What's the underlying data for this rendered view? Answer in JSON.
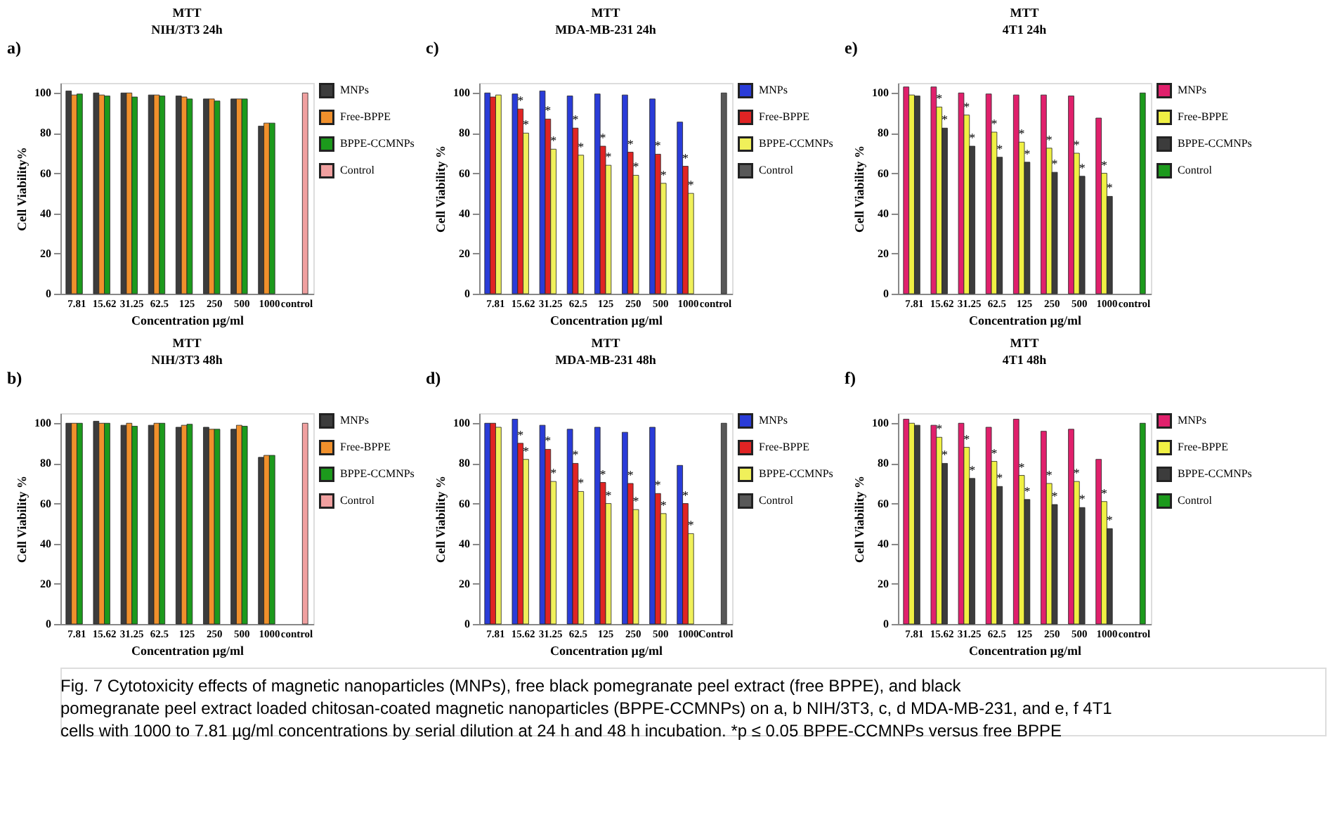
{
  "chart_data": [
    {
      "type": "bar",
      "title": "MTT",
      "subtitle": "NIH/3T3 24h",
      "xlabel": "Concentration µg/ml",
      "ylabel": "Cell Viability%",
      "annotations": [
        "a)",
        "Fig. 7  Cytotoxicity effects of magnetic nanoparticles (MNPs), free black pomegranate peel extract (free BPPE), and black pomegranate peel extract loaded chitosan-coated magnetic nanoparticles (BPPE-CCMNPs) on a, b NIH/3T3, c, d MDA-MB-231, and e, f 4T1 cells with 1000 to 7.81 µg/ml concentrations by serial dilution at 24 h and 48 h incubation. *p ≤ 0.05 BPPE-CCMNPs versus free BPPE"
      ],
      "categories": [
        "7.81",
        "15.62",
        "31.25",
        "62.5",
        "125",
        "250",
        "500",
        "1000",
        "control"
      ],
      "ylim": [
        0,
        105
      ],
      "yticks": [
        0,
        20,
        40,
        60,
        80,
        100
      ],
      "legend": "right",
      "series": [
        {
          "name": "MNPs",
          "color": "#3c3c3c",
          "values": [
            101,
            100,
            100,
            99,
            98.5,
            97,
            97,
            83.5,
            null
          ]
        },
        {
          "name": "Free-BPPE",
          "color": "#f0902c",
          "values": [
            99,
            99,
            100,
            99,
            98,
            97,
            97,
            85,
            null
          ]
        },
        {
          "name": "BPPE-CCMNPs",
          "color": "#1c9a1c",
          "values": [
            99.5,
            98.5,
            98,
            98.5,
            97,
            96,
            97,
            85,
            null
          ]
        },
        {
          "name": "Control",
          "color": "#f0a0a0",
          "values": [
            null,
            null,
            null,
            null,
            null,
            null,
            null,
            null,
            100
          ]
        }
      ]
    },
    {
      "type": "bar",
      "title": "MTT",
      "subtitle": "NIH/3T3 48h",
      "xlabel": "Concentration µg/ml",
      "ylabel": "Cell Viability %",
      "annotations": [
        "b)"
      ],
      "categories": [
        "7.81",
        "15.62",
        "31.25",
        "62.5",
        "125",
        "250",
        "500",
        "1000",
        "control"
      ],
      "ylim": [
        0,
        105
      ],
      "yticks": [
        0,
        20,
        40,
        60,
        80,
        100
      ],
      "legend": "right",
      "series": [
        {
          "name": "MNPs",
          "color": "#3c3c3c",
          "values": [
            100,
            101,
            99,
            99,
            98,
            98,
            97,
            83,
            null
          ]
        },
        {
          "name": "Free-BPPE",
          "color": "#f0902c",
          "values": [
            100,
            100,
            100,
            100,
            99,
            97,
            99,
            84,
            null
          ]
        },
        {
          "name": "BPPE-CCMNPs",
          "color": "#1c9a1c",
          "values": [
            100,
            100,
            98.5,
            100,
            99.5,
            97,
            98.5,
            84,
            null
          ]
        },
        {
          "name": "Control",
          "color": "#f0a0a0",
          "values": [
            null,
            null,
            null,
            null,
            null,
            null,
            null,
            null,
            100
          ]
        }
      ]
    },
    {
      "type": "bar",
      "title": "MTT",
      "subtitle": "MDA-MB-231 24h",
      "xlabel": "Concentration µg/ml",
      "ylabel": "Cell Viability %",
      "annotations": [
        "c)"
      ],
      "categories": [
        "7.81",
        "15.62",
        "31.25",
        "62.5",
        "125",
        "250",
        "500",
        "1000",
        "control"
      ],
      "ylim": [
        0,
        105
      ],
      "yticks": [
        0,
        20,
        40,
        60,
        80,
        100
      ],
      "legend": "right",
      "series": [
        {
          "name": "MNPs",
          "color": "#2a3cd8",
          "values": [
            100,
            99.5,
            101,
            98.5,
            99.5,
            99,
            97,
            85.5,
            null
          ]
        },
        {
          "name": "Free-BPPE",
          "color": "#e02424",
          "values": [
            98,
            92,
            87,
            82.5,
            73.5,
            70.5,
            69.5,
            63.5,
            null
          ],
          "value_labels": [
            null,
            "*",
            "*",
            "*",
            "*",
            "*",
            "*",
            "*",
            null
          ]
        },
        {
          "name": "BPPE-CCMNPs",
          "color": "#f0f05a",
          "values": [
            99,
            80,
            72,
            69,
            64,
            59,
            55,
            50,
            null
          ],
          "value_labels": [
            null,
            "*",
            "*",
            "*",
            "*",
            "*",
            "*",
            "*",
            null
          ]
        },
        {
          "name": "Control",
          "color": "#585858",
          "values": [
            null,
            null,
            null,
            null,
            null,
            null,
            null,
            null,
            100
          ]
        }
      ]
    },
    {
      "type": "bar",
      "title": "MTT",
      "subtitle": "MDA-MB-231 48h",
      "xlabel": "Concentration µg/ml",
      "ylabel": "Cell Viability %",
      "annotations": [
        "d)"
      ],
      "categories": [
        "7.81",
        "15.62",
        "31.25",
        "62.5",
        "125",
        "250",
        "500",
        "1000",
        "Control"
      ],
      "ylim": [
        0,
        105
      ],
      "yticks": [
        0,
        20,
        40,
        60,
        80,
        100
      ],
      "legend": "right",
      "series": [
        {
          "name": "MNPs",
          "color": "#2a3cd8",
          "values": [
            100,
            102,
            99,
            97,
            98,
            95.5,
            98,
            79,
            null
          ]
        },
        {
          "name": "Free-BPPE",
          "color": "#e02424",
          "values": [
            100,
            90,
            87,
            80,
            70.5,
            70,
            65,
            60,
            null
          ],
          "value_labels": [
            null,
            "*",
            "*",
            "*",
            "*",
            "*",
            "*",
            "*",
            null
          ]
        },
        {
          "name": "BPPE-CCMNPs",
          "color": "#f0f05a",
          "values": [
            98,
            82,
            71,
            66,
            60,
            57,
            55,
            45,
            null
          ],
          "value_labels": [
            null,
            "*",
            "*",
            "*",
            "*",
            "*",
            "*",
            "*",
            null
          ]
        },
        {
          "name": "Control",
          "color": "#585858",
          "values": [
            null,
            null,
            null,
            null,
            null,
            null,
            null,
            null,
            100
          ]
        }
      ]
    },
    {
      "type": "bar",
      "title": "MTT",
      "subtitle": "4T1 24h",
      "xlabel": "Concentration µg/ml",
      "ylabel": "Cell Viability %",
      "annotations": [
        "e)"
      ],
      "categories": [
        "7.81",
        "15.62",
        "31.25",
        "62.5",
        "125",
        "250",
        "500",
        "1000",
        "control"
      ],
      "ylim": [
        0,
        105
      ],
      "yticks": [
        0,
        20,
        40,
        60,
        80,
        100
      ],
      "legend": "right",
      "series": [
        {
          "name": "MNPs",
          "color": "#e0206c",
          "values": [
            103,
            103,
            100,
            99.5,
            99,
            99,
            98.5,
            87.5,
            null
          ]
        },
        {
          "name": "Free-BPPE",
          "color": "#f0f044",
          "values": [
            99,
            93,
            89,
            80.5,
            75.5,
            72.5,
            70,
            60,
            null
          ],
          "value_labels": [
            null,
            "*",
            "*",
            "*",
            "*",
            "*",
            "*",
            "*",
            null
          ]
        },
        {
          "name": "BPPE-CCMNPs",
          "color": "#3c3c3c",
          "values": [
            98.5,
            82.5,
            73.5,
            68,
            65.5,
            60.5,
            58.5,
            48.5,
            null
          ],
          "value_labels": [
            null,
            "*",
            "*",
            "*",
            "*",
            "*",
            "*",
            "*",
            null
          ]
        },
        {
          "name": "Control",
          "color": "#1c9a1c",
          "values": [
            null,
            null,
            null,
            null,
            null,
            null,
            null,
            null,
            100
          ]
        }
      ]
    },
    {
      "type": "bar",
      "title": "MTT",
      "subtitle": "4T1 48h",
      "xlabel": "Concentration µg/ml",
      "ylabel": "Cell Viability %",
      "annotations": [
        "f)"
      ],
      "categories": [
        "7.81",
        "15.62",
        "31.25",
        "62.5",
        "125",
        "250",
        "500",
        "1000",
        "control"
      ],
      "ylim": [
        0,
        105
      ],
      "yticks": [
        0,
        20,
        40,
        60,
        80,
        100
      ],
      "legend": "right",
      "series": [
        {
          "name": "MNPs",
          "color": "#e0206c",
          "values": [
            102,
            99,
            100,
            98,
            102,
            96,
            97,
            82,
            null
          ]
        },
        {
          "name": "Free-BPPE",
          "color": "#f0f044",
          "values": [
            100,
            93,
            88,
            81,
            74,
            70,
            71,
            61,
            null
          ],
          "value_labels": [
            null,
            "*",
            "*",
            "*",
            "*",
            "*",
            "*",
            "*",
            null
          ]
        },
        {
          "name": "BPPE-CCMNPs",
          "color": "#3c3c3c",
          "values": [
            99,
            80,
            72.5,
            68.5,
            62,
            59.5,
            58,
            47.5,
            null
          ],
          "value_labels": [
            null,
            "*",
            "*",
            "*",
            "*",
            "*",
            "*",
            "*",
            null
          ]
        },
        {
          "name": "Control",
          "color": "#1c9a1c",
          "values": [
            null,
            null,
            null,
            null,
            null,
            null,
            null,
            null,
            100
          ]
        }
      ]
    }
  ]
}
